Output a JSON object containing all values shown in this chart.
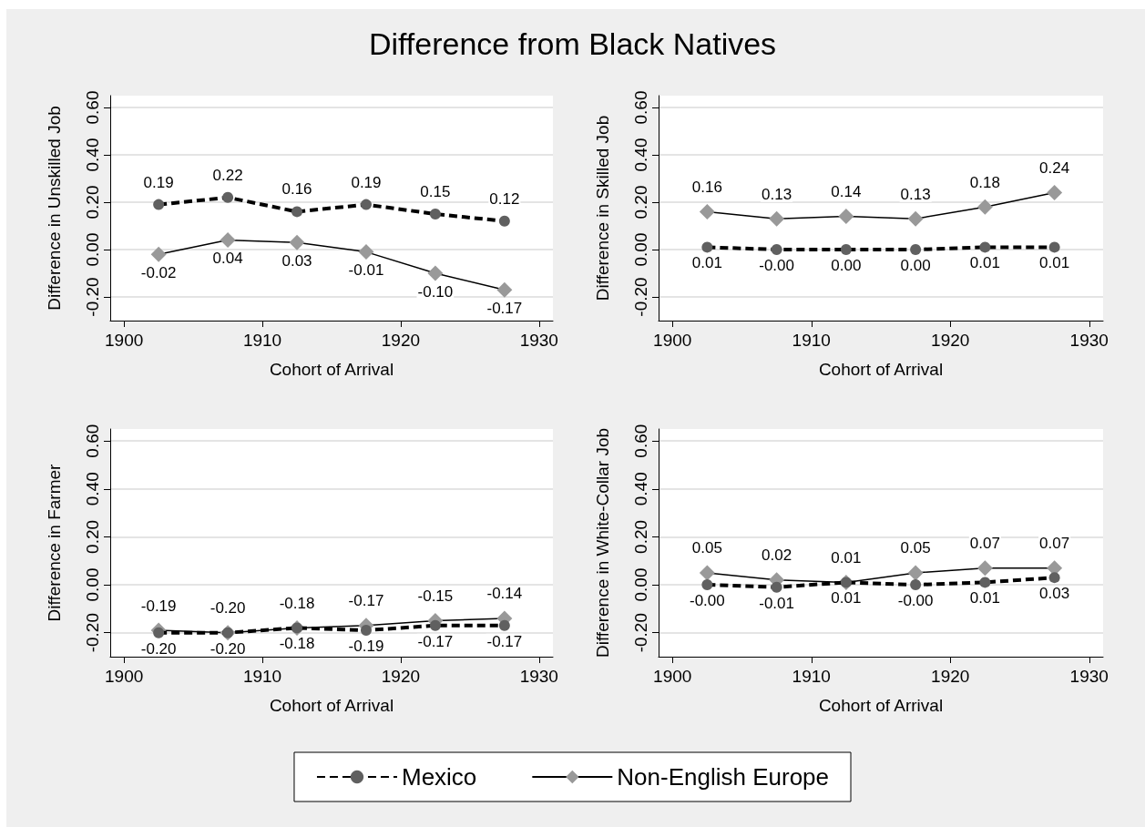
{
  "chart_data": [
    {
      "type": "line",
      "title": "Difference from Black Natives",
      "xlabel": "Cohort of Arrival",
      "ylabel": "Difference in Unskilled Job",
      "x": [
        1902.5,
        1907.5,
        1912.5,
        1917.5,
        1922.5,
        1927.5
      ],
      "xlim": [
        1899,
        1931
      ],
      "xticks": [
        1900,
        1910,
        1920,
        1930
      ],
      "ylim": [
        -0.3,
        0.65
      ],
      "yticks": [
        {
          "value": -0.2,
          "label": "-0.20"
        },
        {
          "value": 0,
          "label": "0.00"
        },
        {
          "value": 0.2,
          "label": "0.20"
        },
        {
          "value": 0.4,
          "label": "0.40"
        },
        {
          "value": 0.6,
          "label": "0.60"
        }
      ],
      "grid": "y",
      "series": [
        {
          "color": "#606060",
          "marker": "circle",
          "line_style": "dashed",
          "values": [
            0.19,
            0.22,
            0.16,
            0.19,
            0.15,
            0.12
          ],
          "value_labels": [
            "0.19",
            "0.22",
            "0.16",
            "0.19",
            "0.15",
            "0.12"
          ]
        },
        {
          "color": "#999999",
          "marker": "diamond",
          "line_style": "solid",
          "values": [
            -0.02,
            0.04,
            0.03,
            -0.01,
            -0.1,
            -0.17
          ],
          "value_labels": [
            "-0.02",
            "0.04",
            "0.03",
            "-0.01",
            "-0.10",
            "-0.17"
          ]
        }
      ]
    },
    {
      "type": "line",
      "xlabel": "Cohort of Arrival",
      "ylabel": "Difference in Skilled Job",
      "x": [
        1902.5,
        1907.5,
        1912.5,
        1917.5,
        1922.5,
        1927.5
      ],
      "xlim": [
        1899,
        1931
      ],
      "xticks": [
        1900,
        1910,
        1920,
        1930
      ],
      "ylim": [
        -0.3,
        0.65
      ],
      "yticks": [
        {
          "value": -0.2,
          "label": "-0.20"
        },
        {
          "value": 0,
          "label": "0.00"
        },
        {
          "value": 0.2,
          "label": "0.20"
        },
        {
          "value": 0.4,
          "label": "0.40"
        },
        {
          "value": 0.6,
          "label": "0.60"
        }
      ],
      "grid": "y",
      "series": [
        {
          "color": "#606060",
          "marker": "circle",
          "line_style": "dashed",
          "values": [
            0.01,
            0,
            0,
            0,
            0.01,
            0.01
          ],
          "value_labels": [
            "0.01",
            "-0.00",
            "0.00",
            "0.00",
            "0.01",
            "0.01"
          ]
        },
        {
          "color": "#999999",
          "marker": "diamond",
          "line_style": "solid",
          "values": [
            0.16,
            0.13,
            0.14,
            0.13,
            0.18,
            0.24
          ],
          "value_labels": [
            "0.16",
            "0.13",
            "0.14",
            "0.13",
            "0.18",
            "0.24"
          ]
        }
      ]
    },
    {
      "type": "line",
      "xlabel": "Cohort of Arrival",
      "ylabel": "Difference in Farmer",
      "x": [
        1902.5,
        1907.5,
        1912.5,
        1917.5,
        1922.5,
        1927.5
      ],
      "xlim": [
        1899,
        1931
      ],
      "xticks": [
        1900,
        1910,
        1920,
        1930
      ],
      "ylim": [
        -0.3,
        0.65
      ],
      "yticks": [
        {
          "value": -0.2,
          "label": "-0.20"
        },
        {
          "value": 0,
          "label": "0.00"
        },
        {
          "value": 0.2,
          "label": "0.20"
        },
        {
          "value": 0.4,
          "label": "0.40"
        },
        {
          "value": 0.6,
          "label": "0.60"
        }
      ],
      "grid": "y",
      "legend": "bottom",
      "series": [
        {
          "name": "Mexico",
          "color": "#606060",
          "marker": "circle",
          "line_style": "dashed",
          "values": [
            -0.2,
            -0.2,
            -0.18,
            -0.19,
            -0.17,
            -0.17
          ],
          "value_labels": [
            "-0.20",
            "-0.20",
            "-0.18",
            "-0.19",
            "-0.17",
            "-0.17"
          ]
        },
        {
          "name": "Non-English Europe",
          "color": "#999999",
          "marker": "diamond",
          "line_style": "solid",
          "values": [
            -0.19,
            -0.2,
            -0.18,
            -0.17,
            -0.15,
            -0.14
          ],
          "value_labels": [
            "-0.19",
            "-0.20",
            "-0.18",
            "-0.17",
            "-0.15",
            "-0.14"
          ]
        }
      ]
    },
    {
      "type": "line",
      "xlabel": "Cohort of Arrival",
      "ylabel": "Difference in White-Collar Job",
      "x": [
        1902.5,
        1907.5,
        1912.5,
        1917.5,
        1922.5,
        1927.5
      ],
      "xlim": [
        1899,
        1931
      ],
      "xticks": [
        1900,
        1910,
        1920,
        1930
      ],
      "ylim": [
        -0.3,
        0.65
      ],
      "yticks": [
        {
          "value": -0.2,
          "label": "-0.20"
        },
        {
          "value": 0,
          "label": "0.00"
        },
        {
          "value": 0.2,
          "label": "0.20"
        },
        {
          "value": 0.4,
          "label": "0.40"
        },
        {
          "value": 0.6,
          "label": "0.60"
        }
      ],
      "grid": "y",
      "series": [
        {
          "color": "#606060",
          "marker": "circle",
          "line_style": "dashed",
          "values": [
            0,
            -0.01,
            0.01,
            0,
            0.01,
            0.03
          ],
          "value_labels": [
            "-0.00",
            "-0.01",
            "0.01",
            "-0.00",
            "0.01",
            "0.03"
          ]
        },
        {
          "color": "#999999",
          "marker": "diamond",
          "line_style": "solid",
          "values": [
            0.05,
            0.02,
            0.01,
            0.05,
            0.07,
            0.07
          ],
          "value_labels": [
            "0.05",
            "0.02",
            "0.01",
            "0.05",
            "0.07",
            "0.07"
          ]
        }
      ]
    }
  ]
}
